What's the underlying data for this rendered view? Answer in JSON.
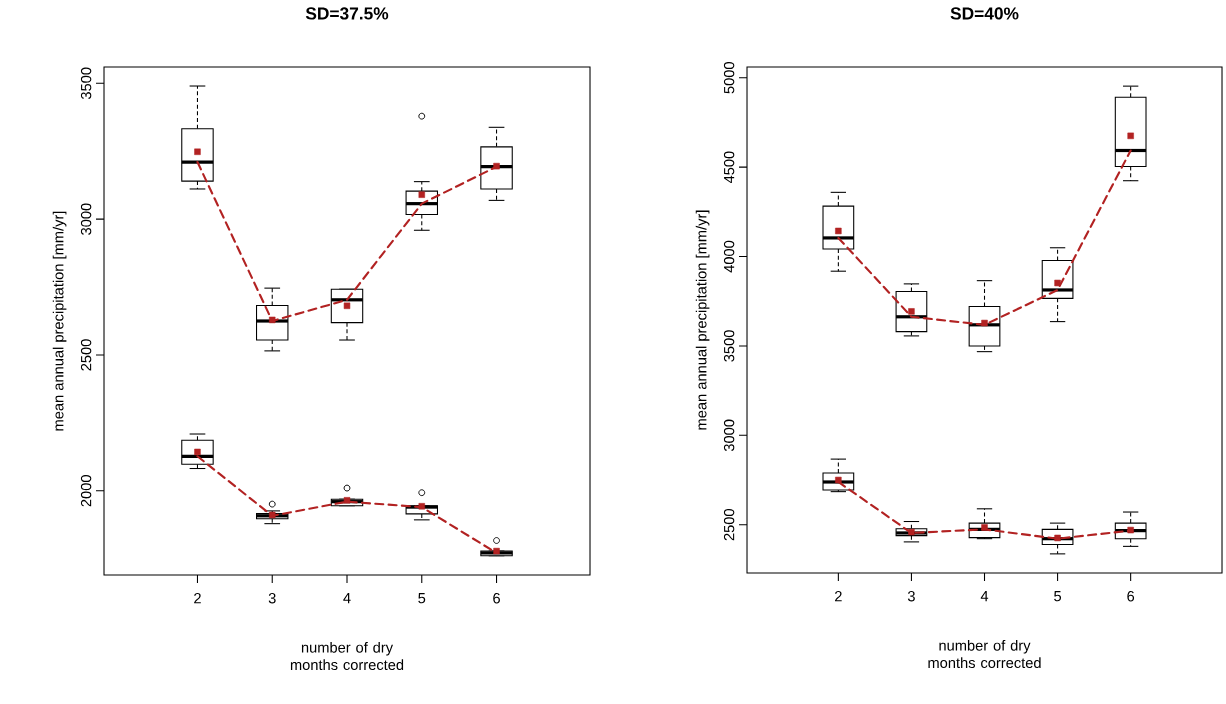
{
  "chart_data": [
    {
      "type": "box",
      "title": "SD=37.5%",
      "xlabel": "number of dry months corrected",
      "ylabel": "mean annual precipitation [mm/yr]",
      "categories": [
        "2",
        "3",
        "4",
        "5",
        "6"
      ],
      "ylim": [
        1690,
        3560
      ],
      "yticks": [
        2000,
        2500,
        3000,
        3500
      ],
      "grid": false,
      "series": [
        {
          "color": "#000000",
          "boxes": [
            {
              "low": 3111,
              "q1": 3140,
              "median": 3210,
              "q3": 3333,
              "high": 3490
            },
            {
              "low": 2515,
              "q1": 2555,
              "median": 2625,
              "q3": 2682,
              "high": 2746
            },
            {
              "low": 2555,
              "q1": 2619,
              "median": 2703,
              "q3": 2742,
              "high": 2742
            },
            {
              "low": 2959,
              "q1": 3017,
              "median": 3057,
              "q3": 3103,
              "high": 3138,
              "outliers": [
                3379
              ]
            },
            {
              "low": 3069,
              "q1": 3111,
              "median": 3193,
              "q3": 3266,
              "high": 3338
            }
          ]
        },
        {
          "color": "#000000",
          "boxes": [
            {
              "low": 2082,
              "q1": 2098,
              "median": 2127,
              "q3": 2186,
              "high": 2209
            },
            {
              "low": 1879,
              "q1": 1897,
              "median": 1908,
              "q3": 1916,
              "high": 1926,
              "outliers": [
                1951
              ]
            },
            {
              "low": 1945,
              "q1": 1945,
              "median": 1960,
              "q3": 1969,
              "high": 1969,
              "outliers": [
                2010
              ]
            },
            {
              "low": 1893,
              "q1": 1915,
              "median": 1940,
              "q3": 1945,
              "high": 1945,
              "outliers": [
                1993
              ]
            },
            {
              "low": 1761,
              "q1": 1761,
              "median": 1771,
              "q3": 1778,
              "high": 1778,
              "outliers": [
                1817
              ]
            }
          ]
        },
        {
          "type": "line",
          "color": "#b22222",
          "line_style": "dashed",
          "marker": "none",
          "values": [
            3210,
            2625,
            2703,
            3057,
            3193
          ]
        },
        {
          "type": "line",
          "color": "#b22222",
          "line_style": "dashed",
          "marker": "none",
          "values": [
            2127,
            1908,
            1960,
            1940,
            1771
          ]
        },
        {
          "type": "scatter",
          "color": "#b22222",
          "marker": "square",
          "values": [
            3248,
            2629,
            2681,
            3090,
            3195
          ]
        },
        {
          "type": "scatter",
          "color": "#b22222",
          "marker": "square",
          "values": [
            2143,
            1911,
            1965,
            1943,
            1778
          ]
        }
      ]
    },
    {
      "type": "box",
      "title": "SD=40%",
      "xlabel": "number of dry months corrected",
      "ylabel": "mean annual precipitation [mm/yr]",
      "categories": [
        "2",
        "3",
        "4",
        "5",
        "6"
      ],
      "ylim": [
        2230,
        5060
      ],
      "yticks": [
        2500,
        3000,
        3500,
        4000,
        4500,
        5000
      ],
      "grid": false,
      "series": [
        {
          "color": "#000000",
          "boxes": [
            {
              "low": 3918,
              "q1": 4042,
              "median": 4104,
              "q3": 4282,
              "high": 4359
            },
            {
              "low": 3556,
              "q1": 3580,
              "median": 3663,
              "q3": 3804,
              "high": 3847
            },
            {
              "low": 3468,
              "q1": 3500,
              "median": 3618,
              "q3": 3721,
              "high": 3865
            },
            {
              "low": 3636,
              "q1": 3766,
              "median": 3813,
              "q3": 3978,
              "high": 4049
            },
            {
              "low": 4424,
              "q1": 4503,
              "median": 4593,
              "q3": 4891,
              "high": 4953
            }
          ]
        },
        {
          "color": "#000000",
          "boxes": [
            {
              "low": 2685,
              "q1": 2694,
              "median": 2739,
              "q3": 2789,
              "high": 2867
            },
            {
              "low": 2404,
              "q1": 2439,
              "median": 2454,
              "q3": 2478,
              "high": 2518
            },
            {
              "low": 2422,
              "q1": 2428,
              "median": 2474,
              "q3": 2509,
              "high": 2589
            },
            {
              "low": 2337,
              "q1": 2389,
              "median": 2422,
              "q3": 2474,
              "high": 2509
            },
            {
              "low": 2379,
              "q1": 2422,
              "median": 2467,
              "q3": 2509,
              "high": 2571
            }
          ]
        },
        {
          "type": "line",
          "color": "#b22222",
          "line_style": "dashed",
          "marker": "none",
          "values": [
            4104,
            3663,
            3618,
            3813,
            4593
          ]
        },
        {
          "type": "line",
          "color": "#b22222",
          "line_style": "dashed",
          "marker": "none",
          "values": [
            2739,
            2454,
            2474,
            2422,
            2467
          ]
        },
        {
          "type": "scatter",
          "color": "#b22222",
          "marker": "square",
          "values": [
            4143,
            3693,
            3628,
            3852,
            4675
          ]
        },
        {
          "type": "scatter",
          "color": "#b22222",
          "marker": "square",
          "values": [
            2750,
            2459,
            2485,
            2426,
            2470
          ]
        }
      ]
    }
  ]
}
